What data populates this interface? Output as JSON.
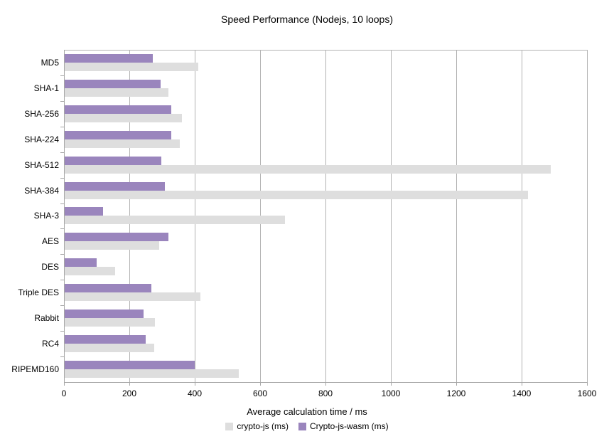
{
  "title": "Speed Performance (Nodejs, 10 loops)",
  "x_axis": {
    "label": "Average calculation time / ms",
    "ticks": [
      0,
      200,
      400,
      600,
      800,
      1000,
      1200,
      1400,
      1600
    ],
    "min": 0,
    "max": 1600
  },
  "colors": {
    "crypto_js": "#dedede",
    "crypto_js_wasm": "#9a85bd",
    "gridline": "#b2b2b2",
    "axis": "#a6a6a6",
    "background": "#ffffff",
    "text": "#000000"
  },
  "legend": {
    "position": "bottom",
    "items": [
      {
        "label": "crypto-js (ms)",
        "color": "#dedede"
      },
      {
        "label": "Crypto-js-wasm (ms)",
        "color": "#9a85bd"
      }
    ]
  },
  "chart_data": {
    "type": "bar",
    "orientation": "horizontal",
    "title": "Speed Performance (Nodejs, 10 loops)",
    "xlabel": "Average calculation time / ms",
    "ylabel": "",
    "xlim": [
      0,
      1600
    ],
    "grid": true,
    "legend_position": "bottom",
    "categories": [
      "MD5",
      "SHA-1",
      "SHA-256",
      "SHA-224",
      "SHA-512",
      "SHA-384",
      "SHA-3",
      "AES",
      "DES",
      "Triple DES",
      "Rabbit",
      "RC4",
      "RIPEMD160"
    ],
    "series": [
      {
        "name": "crypto-js (ms)",
        "color": "#dedede",
        "values": [
          410,
          318,
          360,
          352,
          1490,
          1419,
          675,
          290,
          154,
          415,
          277,
          275,
          533
        ]
      },
      {
        "name": "Crypto-js-wasm (ms)",
        "color": "#9a85bd",
        "values": [
          270,
          293,
          327,
          327,
          297,
          307,
          117,
          317,
          99,
          265,
          242,
          248,
          398
        ]
      }
    ]
  }
}
